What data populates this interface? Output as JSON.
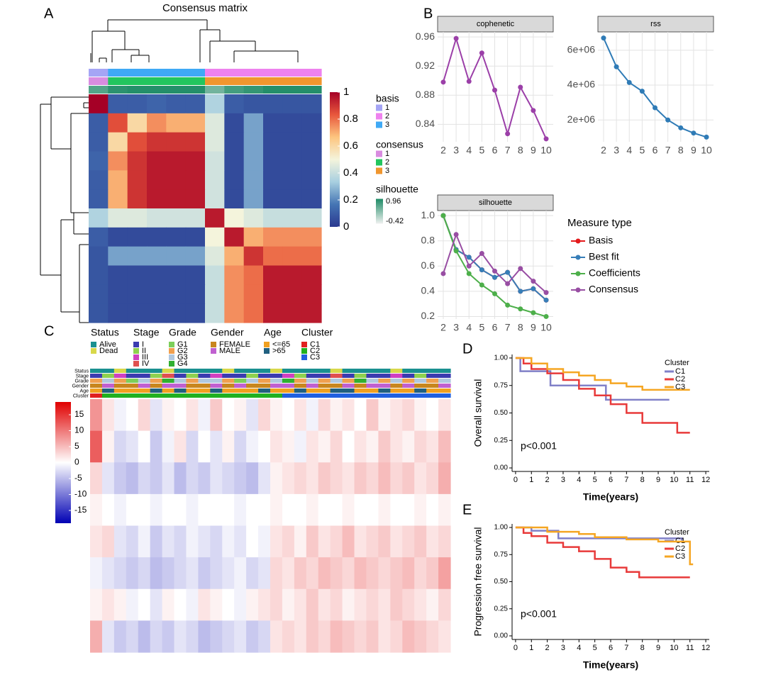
{
  "chart_data": [
    {
      "type": "heatmap",
      "panel": "A",
      "title": "Consensus matrix",
      "values": [
        [
          1,
          0.1,
          0.1,
          0.12,
          0.1,
          0.1,
          0.35,
          0.1,
          0.08,
          0.08,
          0.08,
          0.08
        ],
        [
          0.1,
          0.85,
          0.6,
          0.75,
          0.7,
          0.7,
          0.45,
          0.05,
          0.25,
          0.05,
          0.05,
          0.05
        ],
        [
          0.1,
          0.6,
          0.85,
          0.9,
          0.9,
          0.9,
          0.45,
          0.05,
          0.25,
          0.05,
          0.05,
          0.05
        ],
        [
          0.12,
          0.75,
          0.9,
          0.95,
          0.95,
          0.95,
          0.42,
          0.05,
          0.25,
          0.05,
          0.05,
          0.05
        ],
        [
          0.1,
          0.7,
          0.9,
          0.95,
          0.95,
          0.95,
          0.42,
          0.05,
          0.25,
          0.05,
          0.05,
          0.05
        ],
        [
          0.1,
          0.7,
          0.9,
          0.95,
          0.95,
          0.95,
          0.42,
          0.05,
          0.25,
          0.05,
          0.05,
          0.05
        ],
        [
          0.35,
          0.45,
          0.45,
          0.42,
          0.42,
          0.42,
          0.95,
          0.5,
          0.45,
          0.4,
          0.4,
          0.4
        ],
        [
          0.1,
          0.05,
          0.05,
          0.05,
          0.05,
          0.05,
          0.5,
          0.95,
          0.7,
          0.75,
          0.75,
          0.75
        ],
        [
          0.08,
          0.25,
          0.25,
          0.25,
          0.25,
          0.25,
          0.45,
          0.7,
          0.9,
          0.8,
          0.8,
          0.8
        ],
        [
          0.08,
          0.05,
          0.05,
          0.05,
          0.05,
          0.05,
          0.4,
          0.75,
          0.8,
          0.95,
          0.95,
          0.95
        ],
        [
          0.08,
          0.05,
          0.05,
          0.05,
          0.05,
          0.05,
          0.4,
          0.75,
          0.8,
          0.95,
          0.95,
          0.95
        ],
        [
          0.08,
          0.05,
          0.05,
          0.05,
          0.05,
          0.05,
          0.4,
          0.75,
          0.8,
          0.95,
          0.95,
          0.95
        ]
      ],
      "colorlim": [
        0,
        1
      ],
      "colorticks": [
        0,
        0.2,
        0.4,
        0.6,
        0.8,
        1
      ],
      "colors": [
        "#2b3990",
        "#4575b4",
        "#a8cfe0",
        "#f4f4dc",
        "#fdc57f",
        "#e8573c",
        "#a50026"
      ],
      "annotations": [
        {
          "name": "basis",
          "labels": [
            "1",
            "2",
            "3"
          ],
          "colors": [
            "#a5a5f5",
            "#ee82ee",
            "#3fa9f5"
          ],
          "values": [
            0,
            2,
            2,
            2,
            2,
            2,
            1,
            1,
            1,
            1,
            1,
            1
          ]
        },
        {
          "name": "consensus",
          "labels": [
            "1",
            "2",
            "3"
          ],
          "colors": [
            "#d98ce0",
            "#22c55e",
            "#f0962e"
          ],
          "values": [
            0,
            1,
            1,
            1,
            1,
            1,
            2,
            2,
            2,
            2,
            2,
            2
          ]
        },
        {
          "name": "silhouette",
          "colorlim": [
            -0.42,
            0.96
          ],
          "colorticks": [
            0.96,
            -0.42
          ],
          "colors": [
            "#f2f2f2",
            "#1b8a64"
          ],
          "values": [
            0.6,
            0.85,
            0.9,
            0.9,
            0.9,
            0.9,
            0.4,
            0.7,
            0.8,
            0.9,
            0.9,
            0.9
          ]
        }
      ]
    },
    {
      "type": "line",
      "panel": "B",
      "title": "cophenetic",
      "x": [
        2,
        3,
        4,
        5,
        6,
        7,
        8,
        9,
        10
      ],
      "values": [
        0.898,
        0.958,
        0.899,
        0.938,
        0.887,
        0.827,
        0.891,
        0.859,
        0.82
      ],
      "color": "#9b3fa8",
      "xlim": [
        1.56,
        10.55
      ],
      "xticks": [
        2,
        3,
        4,
        5,
        6,
        7,
        8,
        9,
        10
      ],
      "ylim": [
        0.816,
        0.967
      ],
      "yticks": [
        0.84,
        0.88,
        0.92,
        0.96
      ]
    },
    {
      "type": "line",
      "title": "rss",
      "x": [
        2,
        3,
        4,
        5,
        6,
        7,
        8,
        9,
        10
      ],
      "values": [
        6700000,
        5050000,
        4150000,
        3650000,
        2700000,
        2000000,
        1550000,
        1250000,
        1020000
      ],
      "color": "#2f7bb6",
      "xlim": [
        1.56,
        10.55
      ],
      "xticks": [
        2,
        3,
        4,
        5,
        6,
        7,
        8,
        9,
        10
      ],
      "ylim": [
        750000,
        7050000
      ],
      "yticks": [
        {
          "value": 2000000,
          "label": "2e+06"
        },
        {
          "value": 4000000,
          "label": "4e+06"
        },
        {
          "value": 6000000,
          "label": "6e+06"
        }
      ]
    },
    {
      "type": "line",
      "title": "silhouette",
      "x": [
        2,
        3,
        4,
        5,
        6,
        7,
        8,
        9,
        10
      ],
      "xlim": [
        1.56,
        10.55
      ],
      "xticks": [
        2,
        3,
        4,
        5,
        6,
        7,
        8,
        9,
        10
      ],
      "ylim": [
        0.18,
        1.04
      ],
      "yticks": [
        0.2,
        0.4,
        0.6,
        0.8,
        {
          "value": 1,
          "label": "1.0"
        }
      ],
      "legend_title": "Measure type",
      "series": [
        {
          "name": "Basis",
          "color": "#e41a1c",
          "values": [
            1.0,
            0.73,
            0.67,
            0.57,
            0.51,
            0.55,
            0.4,
            0.42,
            0.33
          ]
        },
        {
          "name": "Best fit",
          "color": "#377eb8",
          "values": [
            1.0,
            0.73,
            0.67,
            0.57,
            0.51,
            0.55,
            0.4,
            0.42,
            0.33
          ]
        },
        {
          "name": "Coefficients",
          "color": "#4daf4a",
          "values": [
            1.0,
            0.72,
            0.54,
            0.45,
            0.38,
            0.29,
            0.26,
            0.23,
            0.2
          ]
        },
        {
          "name": "Consensus",
          "color": "#984ea3",
          "values": [
            0.54,
            0.85,
            0.6,
            0.7,
            0.56,
            0.46,
            0.58,
            0.48,
            0.39
          ]
        }
      ]
    },
    {
      "type": "heatmap",
      "panel": "C",
      "values": [
        [
          8,
          2,
          -1,
          0,
          3,
          -2,
          1,
          0,
          2,
          -1,
          4,
          0,
          1,
          -2,
          3,
          1,
          0,
          2,
          -1,
          3,
          1,
          2,
          0,
          4,
          1,
          2,
          3,
          1,
          0,
          2
        ],
        [
          12,
          1,
          -3,
          -2,
          0,
          -4,
          -1,
          2,
          -3,
          0,
          -2,
          1,
          -3,
          -1,
          0,
          2,
          1,
          -1,
          2,
          1,
          3,
          0,
          2,
          1,
          4,
          2,
          1,
          3,
          2,
          5
        ],
        [
          3,
          -2,
          -4,
          -5,
          -3,
          -4,
          -2,
          -5,
          -3,
          -4,
          -2,
          -3,
          -4,
          -5,
          -2,
          1,
          2,
          3,
          2,
          4,
          3,
          2,
          4,
          3,
          5,
          3,
          4,
          2,
          3,
          6
        ],
        [
          1,
          0,
          -1,
          0,
          0,
          -1,
          0,
          0,
          -1,
          0,
          0,
          0,
          -1,
          0,
          0,
          1,
          0,
          0,
          1,
          0,
          0,
          1,
          0,
          0,
          1,
          0,
          0,
          1,
          0,
          1
        ],
        [
          2,
          3,
          -2,
          -3,
          -1,
          -4,
          -2,
          -3,
          -1,
          -2,
          -3,
          -1,
          -2,
          0,
          -1,
          2,
          3,
          1,
          4,
          2,
          3,
          5,
          2,
          3,
          4,
          2,
          3,
          4,
          2,
          3
        ],
        [
          -1,
          -2,
          -3,
          -4,
          -3,
          -5,
          -4,
          -3,
          -2,
          -4,
          -3,
          -2,
          -1,
          -3,
          -2,
          3,
          2,
          4,
          3,
          5,
          4,
          3,
          5,
          4,
          3,
          4,
          5,
          3,
          4,
          7
        ],
        [
          1,
          2,
          1,
          -1,
          0,
          -2,
          1,
          0,
          -1,
          2,
          1,
          0,
          -1,
          1,
          2,
          3,
          1,
          2,
          4,
          2,
          3,
          1,
          2,
          3,
          2,
          4,
          3,
          2,
          1,
          3
        ],
        [
          6,
          -2,
          -4,
          -3,
          -5,
          -3,
          -4,
          -2,
          -3,
          -5,
          -4,
          -3,
          -2,
          -4,
          -3,
          2,
          3,
          2,
          4,
          3,
          5,
          4,
          3,
          4,
          2,
          3,
          5,
          4,
          3,
          2
        ]
      ],
      "colorlim": [
        -19,
        19
      ],
      "colorticks": [
        15,
        10,
        5,
        0,
        -5,
        -10,
        -15
      ],
      "colors": [
        "#0000b4",
        "#ffffff",
        "#e00000"
      ],
      "annotations": [
        {
          "name": "Status",
          "labels": [
            "Alive",
            "Dead"
          ],
          "colors": [
            "#1a9090",
            "#d8d84a"
          ],
          "values": [
            0,
            0,
            1,
            0,
            0,
            0,
            1,
            0,
            0,
            0,
            0,
            1,
            0,
            0,
            0,
            1,
            0,
            0,
            0,
            0,
            1,
            0,
            0,
            0,
            0,
            1,
            0,
            0,
            0,
            0
          ]
        },
        {
          "name": "Stage",
          "labels": [
            "I",
            "II",
            "III",
            "IV"
          ],
          "colors": [
            "#3b3bb0",
            "#8fd14f",
            "#d040c0",
            "#e05050"
          ],
          "values": [
            0,
            1,
            2,
            0,
            0,
            1,
            3,
            0,
            1,
            0,
            2,
            0,
            0,
            1,
            0,
            0,
            2,
            1,
            0,
            0,
            3,
            0,
            1,
            0,
            0,
            2,
            0,
            1,
            0,
            0
          ]
        },
        {
          "name": "Grade",
          "labels": [
            "G1",
            "G2",
            "G3",
            "G4"
          ],
          "colors": [
            "#7ccf5a",
            "#f0a050",
            "#b0c8e0",
            "#30b030"
          ],
          "values": [
            1,
            2,
            1,
            0,
            2,
            1,
            3,
            2,
            1,
            2,
            2,
            1,
            0,
            2,
            1,
            2,
            3,
            1,
            2,
            1,
            2,
            1,
            3,
            2,
            1,
            2,
            1,
            2,
            1,
            2
          ]
        },
        {
          "name": "Gender",
          "labels": [
            "FEMALE",
            "MALE"
          ],
          "colors": [
            "#c8861e",
            "#c060d0"
          ],
          "values": [
            0,
            1,
            0,
            0,
            1,
            0,
            1,
            1,
            0,
            0,
            1,
            0,
            1,
            0,
            0,
            1,
            1,
            0,
            1,
            0,
            0,
            1,
            0,
            1,
            1,
            0,
            1,
            0,
            0,
            1
          ]
        },
        {
          "name": "Age",
          "labels": [
            "<=65",
            ">65"
          ],
          "colors": [
            "#f0a020",
            "#206080"
          ],
          "values": [
            0,
            1,
            0,
            0,
            0,
            1,
            0,
            1,
            0,
            0,
            1,
            0,
            0,
            0,
            1,
            0,
            0,
            1,
            0,
            0,
            1,
            1,
            0,
            0,
            1,
            0,
            0,
            1,
            0,
            0
          ]
        },
        {
          "name": "Cluster",
          "labels": [
            "C1",
            "C2",
            "C3"
          ],
          "colors": [
            "#e02020",
            "#20b020",
            "#2060e0"
          ],
          "values": [
            0,
            1,
            1,
            1,
            1,
            1,
            1,
            1,
            1,
            1,
            1,
            1,
            1,
            1,
            1,
            1,
            2,
            2,
            2,
            2,
            2,
            2,
            2,
            2,
            2,
            2,
            2,
            2,
            2,
            2
          ]
        }
      ]
    },
    {
      "type": "step",
      "panel": "D",
      "ylabel": "Overall survival",
      "xlabel": "Time(years)",
      "annotation": "p<0.001",
      "legend_title": "Cluster",
      "xlim": [
        -0.22,
        12.22
      ],
      "xticks": [
        0,
        1,
        2,
        3,
        4,
        5,
        6,
        7,
        8,
        9,
        10,
        11,
        12
      ],
      "ylim": [
        -0.032,
        1.032
      ],
      "yticks": [
        {
          "value": 0,
          "label": "0.00"
        },
        {
          "value": 0.25,
          "label": "0.25"
        },
        {
          "value": 0.5,
          "label": "0.50"
        },
        {
          "value": 0.75,
          "label": "0.75"
        },
        {
          "value": 1,
          "label": "1.00"
        }
      ],
      "series": [
        {
          "name": "C1",
          "color": "#8080c8",
          "x": [
            0,
            0.3,
            2.2,
            5.7,
            9.7
          ],
          "values": [
            1,
            0.88,
            0.75,
            0.62,
            0.62
          ]
        },
        {
          "name": "C2",
          "color": "#e83a3a",
          "x": [
            0,
            0.5,
            1,
            2,
            3,
            4,
            5,
            6,
            7,
            8,
            10.2,
            11
          ],
          "values": [
            1,
            0.95,
            0.9,
            0.86,
            0.8,
            0.72,
            0.66,
            0.58,
            0.5,
            0.41,
            0.32,
            0.32
          ]
        },
        {
          "name": "C3",
          "color": "#f5a623",
          "x": [
            0,
            1,
            2,
            3,
            4,
            5,
            6,
            7,
            8,
            11
          ],
          "values": [
            1,
            0.95,
            0.9,
            0.87,
            0.84,
            0.8,
            0.77,
            0.74,
            0.71,
            0.71
          ]
        }
      ]
    },
    {
      "type": "step",
      "panel": "E",
      "ylabel": "Progression free survival",
      "xlabel": "Time(years)",
      "annotation": "p<0.001",
      "legend_title": "Cluster",
      "xlim": [
        -0.22,
        12.22
      ],
      "xticks": [
        0,
        1,
        2,
        3,
        4,
        5,
        6,
        7,
        8,
        9,
        10,
        11,
        12
      ],
      "ylim": [
        -0.033,
        1.033
      ],
      "yticks": [
        {
          "value": 0,
          "label": "0.00"
        },
        {
          "value": 0.25,
          "label": "0.25"
        },
        {
          "value": 0.5,
          "label": "0.50"
        },
        {
          "value": 0.75,
          "label": "0.75"
        },
        {
          "value": 1,
          "label": "1.00"
        }
      ],
      "series": [
        {
          "name": "C1",
          "color": "#8080c8",
          "x": [
            0,
            1,
            2.7,
            10.5
          ],
          "values": [
            1,
            0.97,
            0.9,
            0.88
          ]
        },
        {
          "name": "C2",
          "color": "#e83a3a",
          "x": [
            0,
            0.5,
            1,
            2,
            3,
            4,
            5,
            6,
            7,
            7.8,
            11
          ],
          "values": [
            1,
            0.95,
            0.92,
            0.86,
            0.82,
            0.78,
            0.71,
            0.63,
            0.59,
            0.54,
            0.54
          ]
        },
        {
          "name": "C3",
          "color": "#f5a623",
          "x": [
            0,
            2,
            4,
            5,
            7,
            9,
            11,
            11.2
          ],
          "values": [
            1,
            0.96,
            0.94,
            0.91,
            0.89,
            0.87,
            0.66,
            0.66
          ]
        }
      ]
    }
  ]
}
